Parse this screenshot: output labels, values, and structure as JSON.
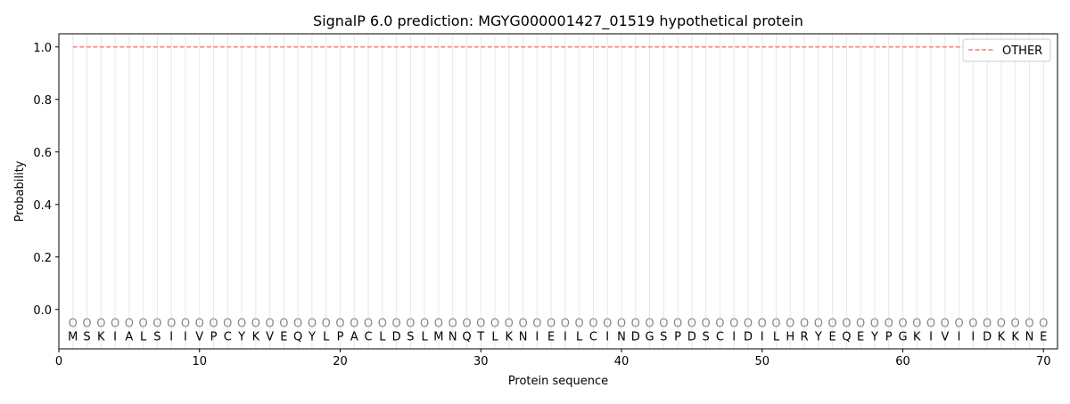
{
  "chart_data": {
    "type": "line",
    "title": "SignalP 6.0 prediction: MGYG000001427_01519 hypothetical protein",
    "xlabel": "Protein sequence",
    "ylabel": "Probability",
    "xlim": [
      0,
      71
    ],
    "ylim": [
      -0.15,
      1.05
    ],
    "xticks": [
      0,
      10,
      20,
      30,
      40,
      50,
      60,
      70
    ],
    "yticks": [
      0.0,
      0.2,
      0.4,
      0.6,
      0.8,
      1.0
    ],
    "grid": "vertical lines at each residue",
    "legend_position": "top-right",
    "sequence": [
      "M",
      "S",
      "K",
      "I",
      "A",
      "L",
      "S",
      "I",
      "I",
      "V",
      "P",
      "C",
      "Y",
      "K",
      "V",
      "E",
      "Q",
      "Y",
      "L",
      "P",
      "A",
      "C",
      "L",
      "D",
      "S",
      "L",
      "M",
      "N",
      "Q",
      "T",
      "L",
      "K",
      "N",
      "I",
      "E",
      "I",
      "L",
      "C",
      "I",
      "N",
      "D",
      "G",
      "S",
      "P",
      "D",
      "S",
      "C",
      "I",
      "D",
      "I",
      "L",
      "H",
      "R",
      "Y",
      "E",
      "Q",
      "E",
      "Y",
      "P",
      "G",
      "K",
      "I",
      "V",
      "I",
      "I",
      "D",
      "K",
      "K",
      "N",
      "E"
    ],
    "region_label": "O",
    "series": [
      {
        "name": "OTHER",
        "color": "#f08080",
        "style": "dashed",
        "x_range": [
          1,
          70
        ],
        "value": 1.0
      }
    ]
  }
}
